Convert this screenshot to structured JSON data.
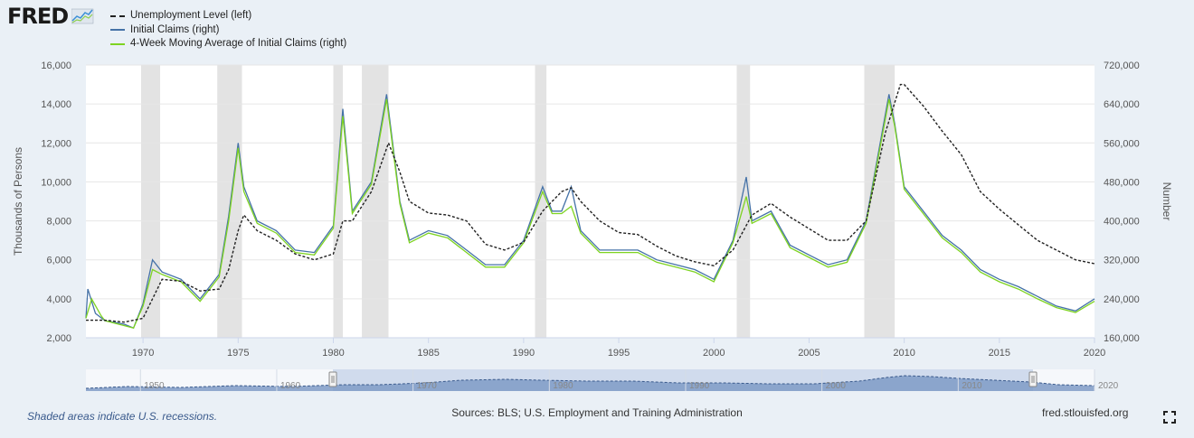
{
  "logo": {
    "text": "FRED",
    "icon": "fred-trend-icon"
  },
  "chart_data": {
    "type": "line",
    "legend_position": "top-left",
    "grid": true,
    "xlim": [
      1967,
      2020
    ],
    "x_ticks": [
      "1970",
      "1975",
      "1980",
      "1985",
      "1990",
      "1995",
      "2000",
      "2005",
      "2010",
      "2015",
      "2020"
    ],
    "ylabel_left": "Thousands of Persons",
    "ylabel_right": "Number",
    "ylim_left": [
      2000,
      16000
    ],
    "ylim_right": [
      160000,
      720000
    ],
    "y_ticks_left": [
      "2,000",
      "4,000",
      "6,000",
      "8,000",
      "10,000",
      "12,000",
      "14,000",
      "16,000"
    ],
    "y_ticks_right": [
      "160,000",
      "240,000",
      "320,000",
      "400,000",
      "480,000",
      "560,000",
      "640,000",
      "720,000"
    ],
    "recessions": [
      [
        1969.9,
        1970.9
      ],
      [
        1973.9,
        1975.2
      ],
      [
        1980.0,
        1980.5
      ],
      [
        1981.5,
        1982.9
      ],
      [
        1990.6,
        1991.2
      ],
      [
        2001.2,
        2001.9
      ],
      [
        2007.9,
        2009.5
      ]
    ],
    "series": [
      {
        "name": "Unemployment Level (left)",
        "axis": "left",
        "color": "#222222",
        "dash": true,
        "points": [
          [
            1967,
            2900
          ],
          [
            1968,
            2900
          ],
          [
            1969,
            2800
          ],
          [
            1970,
            3000
          ],
          [
            1970.5,
            4000
          ],
          [
            1971,
            5000
          ],
          [
            1972,
            4900
          ],
          [
            1973,
            4400
          ],
          [
            1974,
            4500
          ],
          [
            1974.5,
            5500
          ],
          [
            1975,
            7500
          ],
          [
            1975.3,
            8300
          ],
          [
            1976,
            7500
          ],
          [
            1977,
            7000
          ],
          [
            1978,
            6300
          ],
          [
            1979,
            6000
          ],
          [
            1980,
            6300
          ],
          [
            1980.5,
            8000
          ],
          [
            1981,
            8000
          ],
          [
            1982,
            9500
          ],
          [
            1982.9,
            12000
          ],
          [
            1983.5,
            10500
          ],
          [
            1984,
            9000
          ],
          [
            1985,
            8400
          ],
          [
            1986,
            8300
          ],
          [
            1987,
            8000
          ],
          [
            1988,
            6800
          ],
          [
            1989,
            6500
          ],
          [
            1990,
            6900
          ],
          [
            1991,
            8500
          ],
          [
            1992,
            9500
          ],
          [
            1992.5,
            9700
          ],
          [
            1993,
            9000
          ],
          [
            1994,
            8000
          ],
          [
            1995,
            7400
          ],
          [
            1996,
            7300
          ],
          [
            1997,
            6700
          ],
          [
            1998,
            6200
          ],
          [
            1999,
            5900
          ],
          [
            2000,
            5700
          ],
          [
            2001,
            6500
          ],
          [
            2002,
            8300
          ],
          [
            2003,
            8900
          ],
          [
            2004,
            8200
          ],
          [
            2005,
            7600
          ],
          [
            2006,
            7000
          ],
          [
            2007,
            7000
          ],
          [
            2008,
            8000
          ],
          [
            2009,
            12500
          ],
          [
            2009.8,
            15000
          ],
          [
            2010,
            15000
          ],
          [
            2011,
            13900
          ],
          [
            2012,
            12600
          ],
          [
            2013,
            11400
          ],
          [
            2014,
            9500
          ],
          [
            2015,
            8600
          ],
          [
            2016,
            7800
          ],
          [
            2017,
            7000
          ],
          [
            2018,
            6500
          ],
          [
            2019,
            6000
          ],
          [
            2020,
            5800
          ]
        ]
      },
      {
        "name": "Initial Claims (right)",
        "axis": "right",
        "color": "#4572a7",
        "dash": false,
        "points": [
          [
            1967,
            200000
          ],
          [
            1967.1,
            260000
          ],
          [
            1967.5,
            210000
          ],
          [
            1968,
            195000
          ],
          [
            1969,
            188000
          ],
          [
            1969.5,
            180000
          ],
          [
            1970,
            230000
          ],
          [
            1970.5,
            320000
          ],
          [
            1971,
            295000
          ],
          [
            1972,
            280000
          ],
          [
            1973,
            240000
          ],
          [
            1974,
            290000
          ],
          [
            1974.5,
            410000
          ],
          [
            1975,
            560000
          ],
          [
            1975.3,
            470000
          ],
          [
            1976,
            400000
          ],
          [
            1977,
            380000
          ],
          [
            1978,
            340000
          ],
          [
            1979,
            335000
          ],
          [
            1980,
            390000
          ],
          [
            1980.5,
            630000
          ],
          [
            1981,
            420000
          ],
          [
            1982,
            480000
          ],
          [
            1982.8,
            660000
          ],
          [
            1983.5,
            440000
          ],
          [
            1984,
            360000
          ],
          [
            1985,
            380000
          ],
          [
            1986,
            370000
          ],
          [
            1987,
            340000
          ],
          [
            1988,
            310000
          ],
          [
            1989,
            310000
          ],
          [
            1990,
            360000
          ],
          [
            1991,
            470000
          ],
          [
            1991.5,
            420000
          ],
          [
            1992,
            420000
          ],
          [
            1992.5,
            470000
          ],
          [
            1993,
            380000
          ],
          [
            1994,
            340000
          ],
          [
            1995,
            340000
          ],
          [
            1996,
            340000
          ],
          [
            1997,
            320000
          ],
          [
            1998,
            310000
          ],
          [
            1999,
            300000
          ],
          [
            2000,
            280000
          ],
          [
            2001,
            360000
          ],
          [
            2001.7,
            490000
          ],
          [
            2002,
            400000
          ],
          [
            2003,
            420000
          ],
          [
            2004,
            350000
          ],
          [
            2005,
            330000
          ],
          [
            2006,
            310000
          ],
          [
            2007,
            320000
          ],
          [
            2008,
            400000
          ],
          [
            2009.2,
            660000
          ],
          [
            2009.5,
            600000
          ],
          [
            2010,
            470000
          ],
          [
            2011,
            420000
          ],
          [
            2012,
            370000
          ],
          [
            2013,
            340000
          ],
          [
            2014,
            300000
          ],
          [
            2015,
            280000
          ],
          [
            2016,
            265000
          ],
          [
            2017,
            245000
          ],
          [
            2018,
            225000
          ],
          [
            2019,
            215000
          ],
          [
            2020,
            240000
          ]
        ]
      },
      {
        "name": "4-Week Moving Average of Initial Claims (right)",
        "axis": "right",
        "color": "#7ed321",
        "dash": false,
        "points": [
          [
            1967,
            200000
          ],
          [
            1967.3,
            240000
          ],
          [
            1967.8,
            205000
          ],
          [
            1968,
            195000
          ],
          [
            1969,
            185000
          ],
          [
            1969.5,
            180000
          ],
          [
            1970,
            225000
          ],
          [
            1970.5,
            300000
          ],
          [
            1971,
            290000
          ],
          [
            1972,
            275000
          ],
          [
            1973,
            235000
          ],
          [
            1974,
            285000
          ],
          [
            1974.5,
            400000
          ],
          [
            1975,
            550000
          ],
          [
            1975.3,
            460000
          ],
          [
            1976,
            395000
          ],
          [
            1977,
            375000
          ],
          [
            1978,
            335000
          ],
          [
            1979,
            330000
          ],
          [
            1980,
            385000
          ],
          [
            1980.5,
            615000
          ],
          [
            1981,
            415000
          ],
          [
            1982,
            475000
          ],
          [
            1982.8,
            650000
          ],
          [
            1983.5,
            435000
          ],
          [
            1984,
            355000
          ],
          [
            1985,
            375000
          ],
          [
            1986,
            365000
          ],
          [
            1987,
            335000
          ],
          [
            1988,
            305000
          ],
          [
            1989,
            305000
          ],
          [
            1990,
            355000
          ],
          [
            1991,
            460000
          ],
          [
            1991.5,
            415000
          ],
          [
            1992,
            415000
          ],
          [
            1992.5,
            430000
          ],
          [
            1993,
            375000
          ],
          [
            1994,
            335000
          ],
          [
            1995,
            335000
          ],
          [
            1996,
            335000
          ],
          [
            1997,
            315000
          ],
          [
            1998,
            305000
          ],
          [
            1999,
            295000
          ],
          [
            2000,
            275000
          ],
          [
            2001,
            355000
          ],
          [
            2001.7,
            450000
          ],
          [
            2002,
            395000
          ],
          [
            2003,
            415000
          ],
          [
            2004,
            345000
          ],
          [
            2005,
            325000
          ],
          [
            2006,
            305000
          ],
          [
            2007,
            315000
          ],
          [
            2008,
            395000
          ],
          [
            2009.2,
            650000
          ],
          [
            2009.5,
            595000
          ],
          [
            2010,
            465000
          ],
          [
            2011,
            415000
          ],
          [
            2012,
            365000
          ],
          [
            2013,
            335000
          ],
          [
            2014,
            295000
          ],
          [
            2015,
            275000
          ],
          [
            2016,
            260000
          ],
          [
            2017,
            240000
          ],
          [
            2018,
            222000
          ],
          [
            2019,
            212000
          ],
          [
            2020,
            235000
          ]
        ]
      }
    ]
  },
  "navigator": {
    "tick_labels": [
      "1950",
      "1960",
      "1970",
      "1980",
      "1990",
      "2000",
      "2010",
      "2020"
    ]
  },
  "footer": {
    "note": "Shaded areas indicate U.S. recessions.",
    "sources": "Sources: BLS; U.S. Employment and Training Administration",
    "url": "fred.stlouisfed.org",
    "fullscreen_icon": "fullscreen-icon"
  }
}
